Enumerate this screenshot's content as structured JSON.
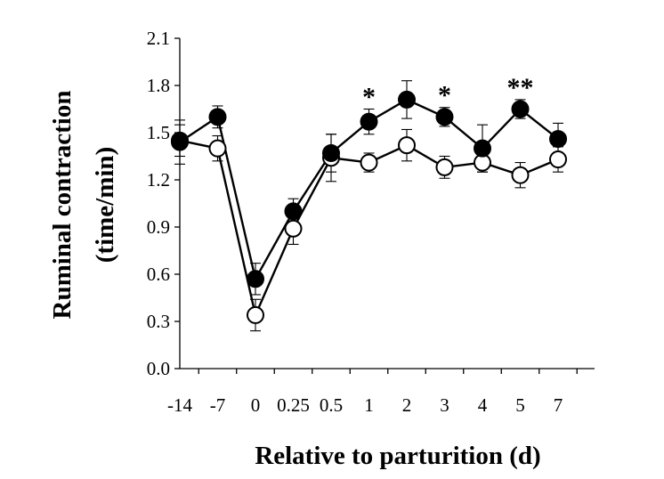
{
  "chart_data": {
    "type": "line",
    "title": "",
    "xlabel": "Relative to parturition (d)",
    "ylabel_lines": [
      "Ruminal contraction",
      "(time/min)"
    ],
    "categories": [
      "-14",
      "-7",
      "0",
      "0.25",
      "0.5",
      "1",
      "2",
      "3",
      "4",
      "5",
      "7"
    ],
    "ylim": [
      0,
      2.1
    ],
    "yticks": [
      "0.0",
      "0.3",
      "0.6",
      "0.9",
      "1.2",
      "1.5",
      "1.8",
      "2.1"
    ],
    "grid": false,
    "series": [
      {
        "marker": "filled-circle",
        "color": "#000000",
        "values": [
          1.44,
          1.6,
          0.57,
          1.0,
          1.37,
          1.57,
          1.71,
          1.6,
          1.4,
          1.65,
          1.46
        ],
        "errors": [
          0.14,
          0.07,
          0.1,
          0.08,
          0.12,
          0.08,
          0.12,
          0.06,
          0.15,
          0.06,
          0.1
        ]
      },
      {
        "marker": "open-circle",
        "color": "#000000",
        "values": [
          1.45,
          1.4,
          0.34,
          0.89,
          1.34,
          1.31,
          1.42,
          1.28,
          1.31,
          1.23,
          1.33
        ],
        "errors": [
          0.1,
          0.08,
          0.1,
          0.1,
          0.15,
          0.06,
          0.1,
          0.07,
          0.06,
          0.08,
          0.08
        ]
      }
    ],
    "annotations": [
      {
        "category": "1",
        "text": "*"
      },
      {
        "category": "3",
        "text": "*"
      },
      {
        "category": "5",
        "text": "**"
      }
    ]
  }
}
